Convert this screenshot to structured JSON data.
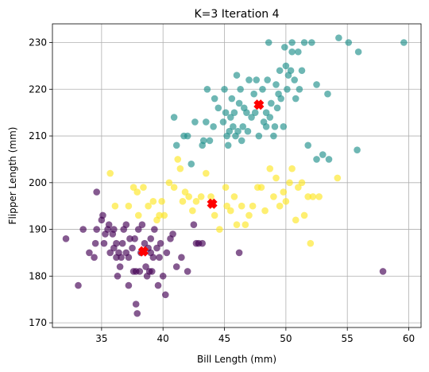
{
  "chart_data": {
    "type": "scatter",
    "title": "K=3 Iteration 4",
    "xlabel": "Bill Length (mm)",
    "ylabel": "Flipper Length (mm)",
    "xlim": [
      31,
      61
    ],
    "ylim": [
      169,
      234
    ],
    "xticks": [
      35,
      40,
      45,
      50,
      55,
      60
    ],
    "yticks": [
      170,
      180,
      190,
      200,
      210,
      220,
      230
    ],
    "grid": true,
    "series": [
      {
        "color": "#440154",
        "points": [
          [
            32.1,
            188
          ],
          [
            33.1,
            178
          ],
          [
            33.5,
            190
          ],
          [
            34.0,
            185
          ],
          [
            34.4,
            184
          ],
          [
            34.5,
            187
          ],
          [
            34.6,
            190
          ],
          [
            34.6,
            198
          ],
          [
            35.0,
            192
          ],
          [
            35.1,
            193
          ],
          [
            35.2,
            187
          ],
          [
            35.3,
            189
          ],
          [
            35.5,
            190
          ],
          [
            35.6,
            191
          ],
          [
            35.7,
            185
          ],
          [
            35.9,
            189
          ],
          [
            36.0,
            186
          ],
          [
            36.0,
            190
          ],
          [
            36.2,
            187
          ],
          [
            36.2,
            184
          ],
          [
            36.3,
            180
          ],
          [
            36.4,
            185
          ],
          [
            36.5,
            182
          ],
          [
            36.6,
            184
          ],
          [
            36.7,
            187
          ],
          [
            36.8,
            190
          ],
          [
            37.0,
            185
          ],
          [
            37.0,
            191
          ],
          [
            37.2,
            178
          ],
          [
            37.2,
            184
          ],
          [
            37.3,
            188
          ],
          [
            37.5,
            186
          ],
          [
            37.6,
            181
          ],
          [
            37.7,
            188
          ],
          [
            37.8,
            174
          ],
          [
            37.8,
            181
          ],
          [
            37.9,
            172
          ],
          [
            38.0,
            190
          ],
          [
            38.1,
            181
          ],
          [
            38.2,
            185
          ],
          [
            38.3,
            191
          ],
          [
            38.5,
            187
          ],
          [
            38.6,
            182
          ],
          [
            38.7,
            180
          ],
          [
            38.8,
            186
          ],
          [
            38.9,
            181
          ],
          [
            39.0,
            185
          ],
          [
            39.0,
            188
          ],
          [
            39.1,
            181
          ],
          [
            39.2,
            184
          ],
          [
            39.3,
            190
          ],
          [
            39.5,
            186
          ],
          [
            39.6,
            178
          ],
          [
            39.7,
            184
          ],
          [
            39.8,
            187
          ],
          [
            40.0,
            180
          ],
          [
            40.2,
            176
          ],
          [
            40.3,
            185
          ],
          [
            40.6,
            188
          ],
          [
            40.8,
            189
          ],
          [
            41.1,
            182
          ],
          [
            41.5,
            184
          ],
          [
            42.0,
            181
          ],
          [
            42.5,
            191
          ],
          [
            42.7,
            187
          ],
          [
            42.9,
            187
          ],
          [
            43.2,
            187
          ],
          [
            46.2,
            185
          ],
          [
            57.9,
            181
          ]
        ]
      },
      {
        "color": "#21918c",
        "points": [
          [
            40.9,
            214
          ],
          [
            41.7,
            210
          ],
          [
            41.1,
            208
          ],
          [
            42.0,
            210
          ],
          [
            42.3,
            204
          ],
          [
            42.6,
            213
          ],
          [
            43.2,
            208
          ],
          [
            43.3,
            209
          ],
          [
            43.5,
            213
          ],
          [
            43.8,
            209
          ],
          [
            44.1,
            212
          ],
          [
            44.5,
            216
          ],
          [
            44.9,
            213
          ],
          [
            45.0,
            220
          ],
          [
            45.1,
            215
          ],
          [
            45.2,
            210
          ],
          [
            45.3,
            208
          ],
          [
            45.4,
            211
          ],
          [
            45.5,
            214
          ],
          [
            45.6,
            218
          ],
          [
            45.7,
            212
          ],
          [
            45.8,
            215
          ],
          [
            46.1,
            211
          ],
          [
            46.2,
            217
          ],
          [
            46.3,
            220
          ],
          [
            46.4,
            209
          ],
          [
            46.5,
            212
          ],
          [
            46.6,
            216
          ],
          [
            46.8,
            215
          ],
          [
            47.0,
            222
          ],
          [
            47.2,
            214
          ],
          [
            47.4,
            219
          ],
          [
            47.5,
            215
          ],
          [
            47.8,
            210
          ],
          [
            48.1,
            220
          ],
          [
            48.2,
            213
          ],
          [
            48.4,
            215
          ],
          [
            48.5,
            222
          ],
          [
            48.7,
            214
          ],
          [
            48.8,
            217
          ],
          [
            49.0,
            210
          ],
          [
            49.1,
            212
          ],
          [
            49.2,
            221
          ],
          [
            49.3,
            216
          ],
          [
            49.4,
            219
          ],
          [
            49.5,
            224
          ],
          [
            49.6,
            218
          ],
          [
            49.8,
            212
          ],
          [
            50.0,
            225
          ],
          [
            50.1,
            220
          ],
          [
            50.2,
            223
          ],
          [
            50.4,
            224
          ],
          [
            50.5,
            228
          ],
          [
            50.7,
            222
          ],
          [
            50.8,
            218
          ],
          [
            51.1,
            220
          ],
          [
            51.3,
            224
          ],
          [
            51.5,
            230
          ],
          [
            52.1,
            230
          ],
          [
            52.5,
            221
          ],
          [
            53.4,
            219
          ],
          [
            54.3,
            231
          ],
          [
            55.1,
            230
          ],
          [
            55.9,
            228
          ],
          [
            59.6,
            230
          ],
          [
            48.6,
            230
          ],
          [
            49.9,
            229
          ],
          [
            50.5,
            230
          ],
          [
            51.0,
            228
          ],
          [
            52.5,
            205
          ],
          [
            53.0,
            206
          ],
          [
            53.5,
            205
          ],
          [
            51.8,
            208
          ],
          [
            55.8,
            207
          ],
          [
            46.0,
            223
          ],
          [
            44.2,
            218
          ],
          [
            43.6,
            220
          ],
          [
            47.6,
            222
          ],
          [
            48.4,
            212
          ],
          [
            46.9,
            211
          ],
          [
            45.9,
            210
          ]
        ]
      },
      {
        "color": "#fde725",
        "points": [
          [
            35.7,
            202
          ],
          [
            36.1,
            195
          ],
          [
            37.2,
            195
          ],
          [
            37.6,
            199
          ],
          [
            37.9,
            198
          ],
          [
            38.0,
            193
          ],
          [
            38.4,
            199
          ],
          [
            38.8,
            195
          ],
          [
            39.2,
            196
          ],
          [
            39.5,
            192
          ],
          [
            39.7,
            193
          ],
          [
            39.9,
            196
          ],
          [
            40.1,
            193
          ],
          [
            40.5,
            200
          ],
          [
            40.9,
            199
          ],
          [
            41.2,
            205
          ],
          [
            41.4,
            203
          ],
          [
            41.6,
            196
          ],
          [
            41.8,
            198
          ],
          [
            42.1,
            197
          ],
          [
            42.4,
            194
          ],
          [
            42.7,
            196
          ],
          [
            43.1,
            197
          ],
          [
            43.5,
            202
          ],
          [
            43.9,
            197
          ],
          [
            44.2,
            193
          ],
          [
            44.6,
            190
          ],
          [
            45.1,
            199
          ],
          [
            45.2,
            195
          ],
          [
            45.5,
            194
          ],
          [
            45.8,
            197
          ],
          [
            46.0,
            191
          ],
          [
            46.4,
            195
          ],
          [
            46.7,
            191
          ],
          [
            47.0,
            193
          ],
          [
            47.3,
            195
          ],
          [
            47.7,
            199
          ],
          [
            48.0,
            199
          ],
          [
            48.3,
            194
          ],
          [
            48.7,
            203
          ],
          [
            49.0,
            197
          ],
          [
            49.2,
            201
          ],
          [
            49.5,
            195
          ],
          [
            49.8,
            198
          ],
          [
            50.0,
            196
          ],
          [
            50.3,
            200
          ],
          [
            50.5,
            203
          ],
          [
            50.8,
            192
          ],
          [
            51.0,
            199
          ],
          [
            51.3,
            200
          ],
          [
            51.5,
            193
          ],
          [
            51.8,
            197
          ],
          [
            52.0,
            187
          ],
          [
            52.2,
            197
          ],
          [
            52.7,
            197
          ],
          [
            54.2,
            201
          ]
        ]
      }
    ],
    "centroids": {
      "color": "#ff0000",
      "points": [
        [
          38.4,
          185.3
        ],
        [
          47.8,
          216.7
        ],
        [
          44.0,
          195.5
        ]
      ]
    }
  }
}
